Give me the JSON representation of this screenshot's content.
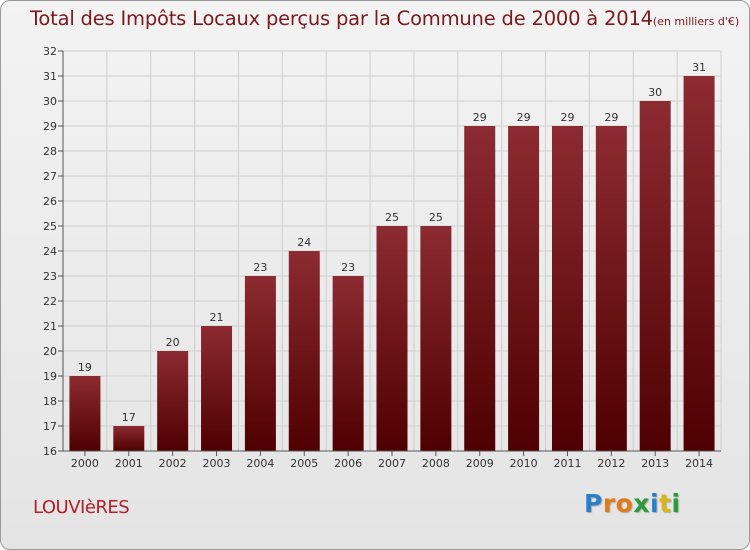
{
  "header": {
    "title": "Total des Impôts Locaux perçus par la Commune de 2000 à 2014",
    "unit": "(en milliers d'€)"
  },
  "commune": "LOUVIèRES",
  "logo": {
    "text": "Proxiti",
    "letters": [
      {
        "ch": "P",
        "color": "#2a7fc9"
      },
      {
        "ch": "r",
        "color": "#e07b1a"
      },
      {
        "ch": "o",
        "color": "#e07b1a"
      },
      {
        "ch": "x",
        "color": "#2a9a3a"
      },
      {
        "ch": "i",
        "color": "#2a7fc9"
      },
      {
        "ch": "t",
        "color": "#d9b51a"
      },
      {
        "ch": "i",
        "color": "#2a9a3a"
      }
    ]
  },
  "colors": {
    "bar_top": "#8c2b31",
    "bar_bottom": "#4f0000",
    "grid": "#cfcfcf",
    "axis": "#555555"
  },
  "chart_data": {
    "type": "bar",
    "title": "Total des Impôts Locaux perçus par la Commune de 2000 à 2014",
    "ylabel": "en milliers d'€",
    "xlabel": "",
    "categories": [
      "2000",
      "2001",
      "2002",
      "2003",
      "2004",
      "2005",
      "2006",
      "2007",
      "2008",
      "2009",
      "2010",
      "2011",
      "2012",
      "2013",
      "2014"
    ],
    "values": [
      19,
      17,
      20,
      21,
      23,
      24,
      23,
      25,
      25,
      29,
      29,
      29,
      29,
      30,
      31
    ],
    "ylim": [
      16,
      32
    ],
    "yticks": [
      16,
      17,
      18,
      19,
      20,
      21,
      22,
      23,
      24,
      25,
      26,
      27,
      28,
      29,
      30,
      31,
      32
    ],
    "grid": true
  }
}
